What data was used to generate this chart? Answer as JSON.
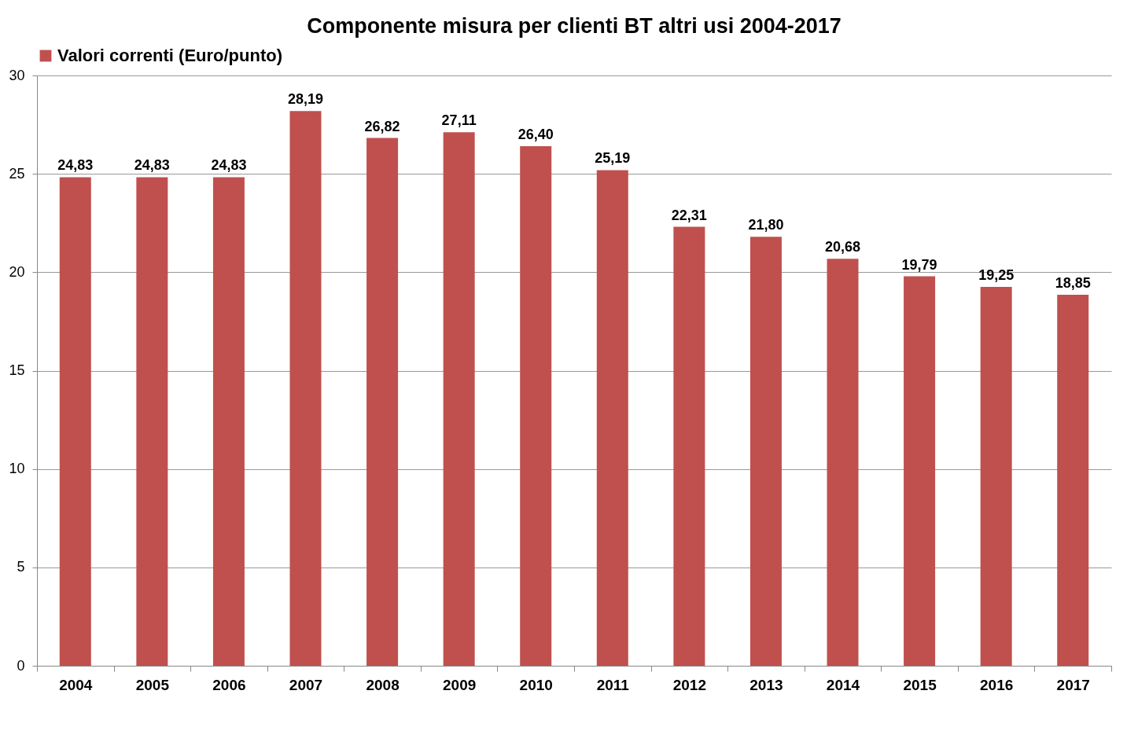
{
  "chart_data": {
    "type": "bar",
    "title": "Componente misura per clienti BT altri usi 2004-2017",
    "categories": [
      "2004",
      "2005",
      "2006",
      "2007",
      "2008",
      "2009",
      "2010",
      "2011",
      "2012",
      "2013",
      "2014",
      "2015",
      "2016",
      "2017"
    ],
    "series": [
      {
        "name": "Valori correnti (Euro/punto)",
        "color": "#c0504d",
        "values": [
          24.83,
          24.83,
          24.83,
          28.19,
          26.82,
          27.11,
          26.4,
          25.19,
          22.31,
          21.8,
          20.68,
          19.79,
          19.25,
          18.85
        ],
        "value_labels": [
          "24,83",
          "24,83",
          "24,83",
          "28,19",
          "26,82",
          "27,11",
          "26,40",
          "25,19",
          "22,31",
          "21,80",
          "20,68",
          "19,79",
          "19,25",
          "18,85"
        ]
      }
    ],
    "ylim": [
      0,
      30
    ],
    "yticks": [
      0,
      5,
      10,
      15,
      20,
      25,
      30
    ],
    "grid": "y",
    "legend": "top"
  }
}
